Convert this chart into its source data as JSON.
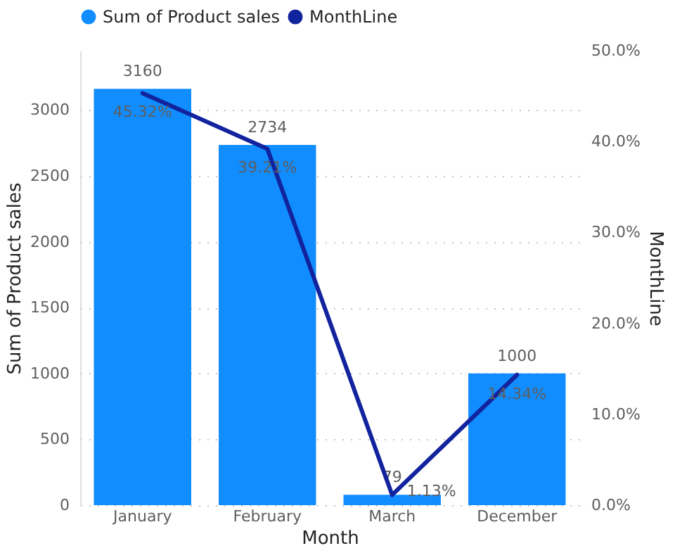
{
  "chart_data": {
    "type": "bar",
    "xlabel": "Month",
    "ylabel": "Sum of Product sales",
    "y2label": "MonthLine",
    "categories": [
      "January",
      "February",
      "March",
      "December"
    ],
    "series": [
      {
        "name": "Sum of Product sales",
        "color": "#118dff",
        "values": [
          3160,
          2734,
          79,
          1000
        ],
        "value_labels": [
          "3160",
          "2734",
          "79",
          "1000"
        ]
      },
      {
        "name": "MonthLine",
        "type": "line",
        "axis": "y2",
        "color": "#12239e",
        "values": [
          45.32,
          39.21,
          1.13,
          14.34
        ],
        "value_labels": [
          "45.32%",
          "39.21%",
          "1.13%",
          "14.34%"
        ]
      }
    ],
    "ylim": [
      0,
      3450
    ],
    "yticks": [
      0,
      500,
      1000,
      1500,
      2000,
      2500,
      3000
    ],
    "y2lim": [
      0,
      50
    ],
    "y2ticks": [
      {
        "value": 0,
        "label": "0.0%"
      },
      {
        "value": 10,
        "label": "10.0%"
      },
      {
        "value": 20,
        "label": "20.0%"
      },
      {
        "value": 30,
        "label": "30.0%"
      },
      {
        "value": 40,
        "label": "40.0%"
      },
      {
        "value": 50,
        "label": "50.0%"
      }
    ],
    "grid": "y",
    "legend": "top left",
    "marker": "none",
    "line_style": "solid"
  }
}
